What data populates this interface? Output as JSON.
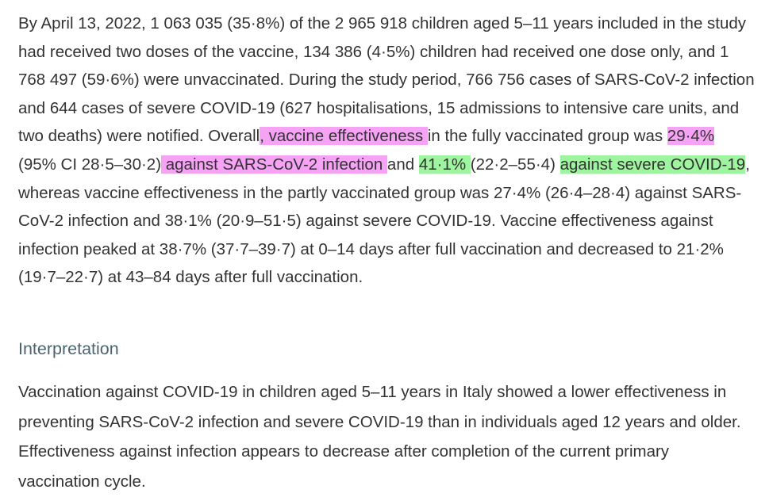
{
  "results": {
    "part1": "By April 13, 2022, 1 063 035 (35·8%) of the 2 965 918 children aged 5–11 years included in the study had received two doses of the vaccine, 134 386 (4·5%) children had received one dose only, and 1 768 497 (59·6%) were unvaccinated. During the study period, 766 756 cases of SARS-CoV-2 infection and 644 cases of severe COVID-19 (627 hospitalisations, 15 admissions to intensive care units, and two deaths) were notified. Overall",
    "hl1": ", vaccine effectiveness ",
    "part2": "in the fully vaccinated group was ",
    "hl2": "29·4%",
    "part3": " (95% CI 28·5–30·2)",
    "hl3": " against SARS-CoV-2 infection ",
    "part4": "and ",
    "hl4": "41·1% ",
    "part5": "(22·2–55·4) ",
    "hl5": "against severe COVID-19",
    "part6": ", whereas vaccine effectiveness in the partly vaccinated group was 27·4% (26·4–28·4) against SARS-CoV-2 infection and 38·1% (20·9–51·5) against severe COVID-19. Vaccine effectiveness against infection peaked at 38·7% (37·7–39·7) at 0–14 days after full vaccination and decreased to 21·2% (19·7–22·7) at 43–84 days after full vaccination."
  },
  "interpretation": {
    "heading": "Interpretation",
    "text": "Vaccination against COVID-19 in children aged 5–11 years in Italy showed a lower effectiveness in preventing SARS-CoV-2 infection and severe COVID-19 than in individuals aged 12 years and older. Effectiveness against infection appears to decrease after completion of the current primary vaccination cycle."
  },
  "highlight_colors": {
    "pink": "#f6a3f6",
    "green": "#9ff59f"
  }
}
